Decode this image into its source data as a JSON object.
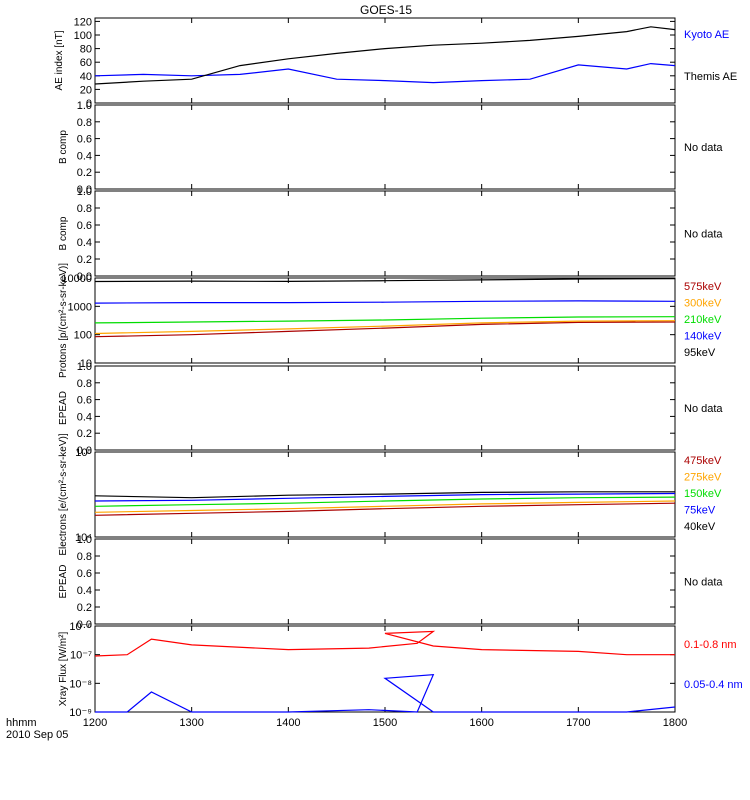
{
  "title": "GOES-15",
  "time_axis": {
    "label": "hhmm",
    "date": "2010 Sep 05",
    "ticks": [
      "1200",
      "1300",
      "1400",
      "1500",
      "1600",
      "1700",
      "1800"
    ]
  },
  "colors": {
    "black": "#000000",
    "blue": "#0000ff",
    "red": "#ff0000",
    "orange": "#ffa500",
    "green": "#00dd00",
    "darkred": "#aa0000"
  },
  "chart_data": [
    {
      "type": "line",
      "panel": "ae",
      "ylabel": "AE index [nT]",
      "yticks": [
        "0",
        "20",
        "40",
        "60",
        "80",
        "100",
        "120"
      ],
      "ylim": [
        0,
        125
      ],
      "x": [
        1200,
        1230,
        1300,
        1330,
        1400,
        1430,
        1500,
        1530,
        1600,
        1630,
        1700,
        1730,
        1745,
        1800
      ],
      "series": [
        {
          "name": "Kyoto AE",
          "color": "#0000ff",
          "values": [
            40,
            42,
            40,
            42,
            50,
            35,
            33,
            30,
            33,
            35,
            56,
            50,
            58,
            55
          ]
        },
        {
          "name": "Themis AE",
          "color": "#000000",
          "values": [
            28,
            32,
            35,
            55,
            65,
            73,
            80,
            85,
            88,
            92,
            98,
            105,
            112,
            108
          ]
        }
      ]
    },
    {
      "type": "line",
      "panel": "b1",
      "ylabel": "B comp",
      "yticks": [
        "0.0",
        "0.2",
        "0.4",
        "0.6",
        "0.8",
        "1.0"
      ],
      "ylim": [
        0,
        1
      ],
      "note": "No data"
    },
    {
      "type": "line",
      "panel": "b2",
      "ylabel": "B comp",
      "yticks": [
        "0.0",
        "0.2",
        "0.4",
        "0.6",
        "0.8",
        "1.0"
      ],
      "ylim": [
        0,
        1
      ],
      "note": "No data"
    },
    {
      "type": "line",
      "panel": "protons",
      "ylabel": "Protons [p/(cm²-s-sr-keV)]",
      "yticks": [
        "10",
        "100",
        "1000",
        "10000"
      ],
      "log": true,
      "ylim": [
        10,
        10000
      ],
      "x": [
        1200,
        1300,
        1400,
        1500,
        1600,
        1700,
        1800
      ],
      "series": [
        {
          "name": "575keV",
          "color": "#aa0000",
          "values": [
            85,
            100,
            130,
            170,
            230,
            270,
            280
          ]
        },
        {
          "name": "300keV",
          "color": "#ffa500",
          "values": [
            110,
            130,
            160,
            200,
            260,
            300,
            310
          ]
        },
        {
          "name": "210keV",
          "color": "#00dd00",
          "values": [
            260,
            280,
            300,
            330,
            380,
            420,
            430
          ]
        },
        {
          "name": "140keV",
          "color": "#0000ff",
          "values": [
            1300,
            1350,
            1350,
            1400,
            1500,
            1550,
            1500
          ]
        },
        {
          "name": "95keV",
          "color": "#000000",
          "values": [
            7500,
            7800,
            7600,
            8000,
            8600,
            9200,
            9500
          ]
        }
      ]
    },
    {
      "type": "line",
      "panel": "epead1",
      "ylabel": "EPEAD",
      "yticks": [
        "0.0",
        "0.2",
        "0.4",
        "0.6",
        "0.8",
        "1.0"
      ],
      "ylim": [
        0,
        1
      ],
      "note": "No data"
    },
    {
      "type": "line",
      "panel": "electrons",
      "ylabel": "Electrons [e/(cm²-s-sr-keV)]",
      "yticks": [
        "10⁴",
        "10⁵"
      ],
      "log": true,
      "ylim": [
        10000,
        100000
      ],
      "x": [
        1200,
        1300,
        1400,
        1500,
        1600,
        1700,
        1800
      ],
      "series": [
        {
          "name": "475keV",
          "color": "#aa0000",
          "values": [
            18000,
            19000,
            20000,
            21500,
            23000,
            24000,
            25000
          ]
        },
        {
          "name": "275keV",
          "color": "#ffa500",
          "values": [
            19500,
            20500,
            21500,
            23000,
            24500,
            25500,
            26500
          ]
        },
        {
          "name": "150keV",
          "color": "#00dd00",
          "values": [
            23000,
            24000,
            25000,
            26500,
            28000,
            29000,
            29500
          ]
        },
        {
          "name": "75keV",
          "color": "#0000ff",
          "values": [
            26500,
            27000,
            28500,
            30000,
            31500,
            32000,
            32500
          ]
        },
        {
          "name": "40keV",
          "color": "#000000",
          "values": [
            30500,
            29000,
            31000,
            32000,
            33500,
            34000,
            34000
          ]
        }
      ]
    },
    {
      "type": "line",
      "panel": "epead2",
      "ylabel": "EPEAD",
      "yticks": [
        "0.0",
        "0.2",
        "0.4",
        "0.6",
        "0.8",
        "1.0"
      ],
      "ylim": [
        0,
        1
      ],
      "note": "No data"
    },
    {
      "type": "line",
      "panel": "xray",
      "ylabel": "Xray Flux [W/m²]",
      "yticks": [
        "10⁻⁹",
        "10⁻⁸",
        "10⁻⁷",
        "10⁻⁶"
      ],
      "log": true,
      "ylim": [
        1e-09,
        1e-06
      ],
      "x": [
        1200,
        1220,
        1235,
        1300,
        1400,
        1450,
        1480,
        1490,
        1500,
        1530,
        1600,
        1700,
        1730,
        1800
      ],
      "series": [
        {
          "name": "0.1-0.8 nm",
          "color": "#ff0000",
          "values": [
            9e-08,
            1e-07,
            3.5e-07,
            2.2e-07,
            1.5e-07,
            1.7e-07,
            2.5e-07,
            6.5e-07,
            5.5e-07,
            2e-07,
            1.5e-07,
            1.3e-07,
            1e-07,
            1e-07
          ]
        },
        {
          "name": "0.05-0.4 nm",
          "color": "#0000ff",
          "values": [
            1e-09,
            1e-09,
            5e-09,
            1e-09,
            1e-09,
            1.2e-09,
            1e-09,
            2e-08,
            1.5e-08,
            1e-09,
            1e-09,
            1e-09,
            1e-09,
            1.5e-09
          ]
        }
      ]
    }
  ]
}
